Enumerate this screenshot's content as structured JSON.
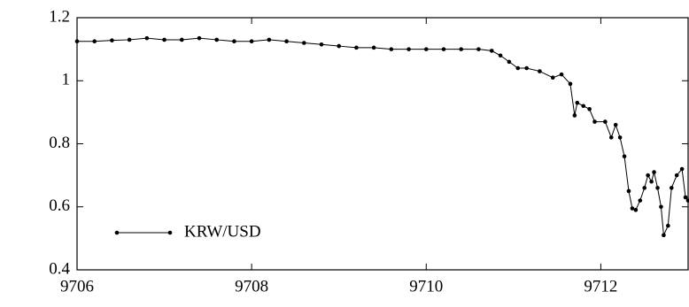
{
  "chart_data": {
    "type": "line",
    "x": [
      9706.0,
      9706.2,
      9706.4,
      9706.6,
      9706.8,
      9707.0,
      9707.2,
      9707.4,
      9707.6,
      9707.8,
      9708.0,
      9708.2,
      9708.4,
      9708.6,
      9708.8,
      9709.0,
      9709.2,
      9709.4,
      9709.6,
      9709.8,
      9710.0,
      9710.2,
      9710.4,
      9710.6,
      9710.75,
      9710.85,
      9710.95,
      9711.05,
      9711.15,
      9711.3,
      9711.45,
      9711.55,
      9711.65,
      9711.7,
      9711.73,
      9711.8,
      9711.87,
      9711.93,
      9712.05,
      9712.12,
      9712.17,
      9712.22,
      9712.27,
      9712.32,
      9712.36,
      9712.4,
      9712.45,
      9712.5,
      9712.54,
      9712.58,
      9712.61,
      9712.65,
      9712.69,
      9712.72,
      9712.77,
      9712.81,
      9712.87,
      9712.93,
      9712.97,
      9713.0
    ],
    "series": [
      {
        "name": "KRW/USD",
        "color": "#000000",
        "values": [
          1.125,
          1.125,
          1.128,
          1.13,
          1.135,
          1.13,
          1.13,
          1.135,
          1.13,
          1.125,
          1.125,
          1.13,
          1.125,
          1.12,
          1.115,
          1.11,
          1.105,
          1.105,
          1.1,
          1.1,
          1.1,
          1.1,
          1.1,
          1.1,
          1.095,
          1.08,
          1.06,
          1.04,
          1.04,
          1.03,
          1.01,
          1.02,
          0.99,
          0.89,
          0.93,
          0.92,
          0.91,
          0.87,
          0.87,
          0.82,
          0.86,
          0.82,
          0.76,
          0.65,
          0.595,
          0.59,
          0.62,
          0.66,
          0.7,
          0.68,
          0.71,
          0.66,
          0.6,
          0.51,
          0.54,
          0.66,
          0.7,
          0.72,
          0.63,
          0.62
        ]
      }
    ],
    "xlim": [
      9706,
      9713
    ],
    "xticks": [
      9706,
      9708,
      9710,
      9712
    ],
    "ylim": [
      0.4,
      1.2
    ],
    "yticks": [
      0.4,
      0.6,
      0.8,
      1,
      1.2
    ],
    "legend": "lower left"
  }
}
